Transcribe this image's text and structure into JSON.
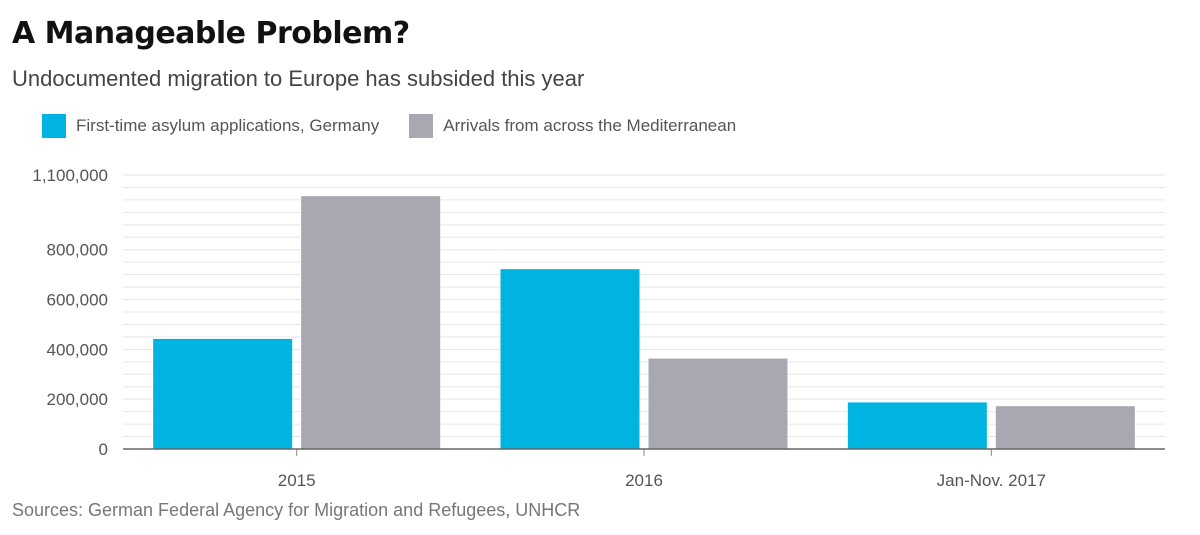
{
  "chart_data": {
    "type": "bar",
    "title": "A Manageable Problem?",
    "subtitle": "Undocumented migration to Europe has subsided this year",
    "categories": [
      "2015",
      "2016",
      "Jan-Nov. 2017"
    ],
    "series": [
      {
        "name": "First-time asylum applications, Germany",
        "color": "#00b4e1",
        "values": [
          442000,
          722000,
          187000
        ]
      },
      {
        "name": "Arrivals from across the Mediterranean",
        "color": "#a8a8b3",
        "values": [
          1015000,
          363000,
          172000
        ]
      }
    ],
    "yticks": [
      0,
      200000,
      400000,
      600000,
      800000,
      1100000
    ],
    "ytick_labels": [
      "0",
      "200,000",
      "400,000",
      "600,000",
      "800,000",
      "1,100,000"
    ],
    "ylim": [
      0,
      1100000
    ],
    "grid": true,
    "legend_position": "top-left",
    "source": "Sources: German Federal Agency for Migration and Refugees, UNHCR"
  }
}
